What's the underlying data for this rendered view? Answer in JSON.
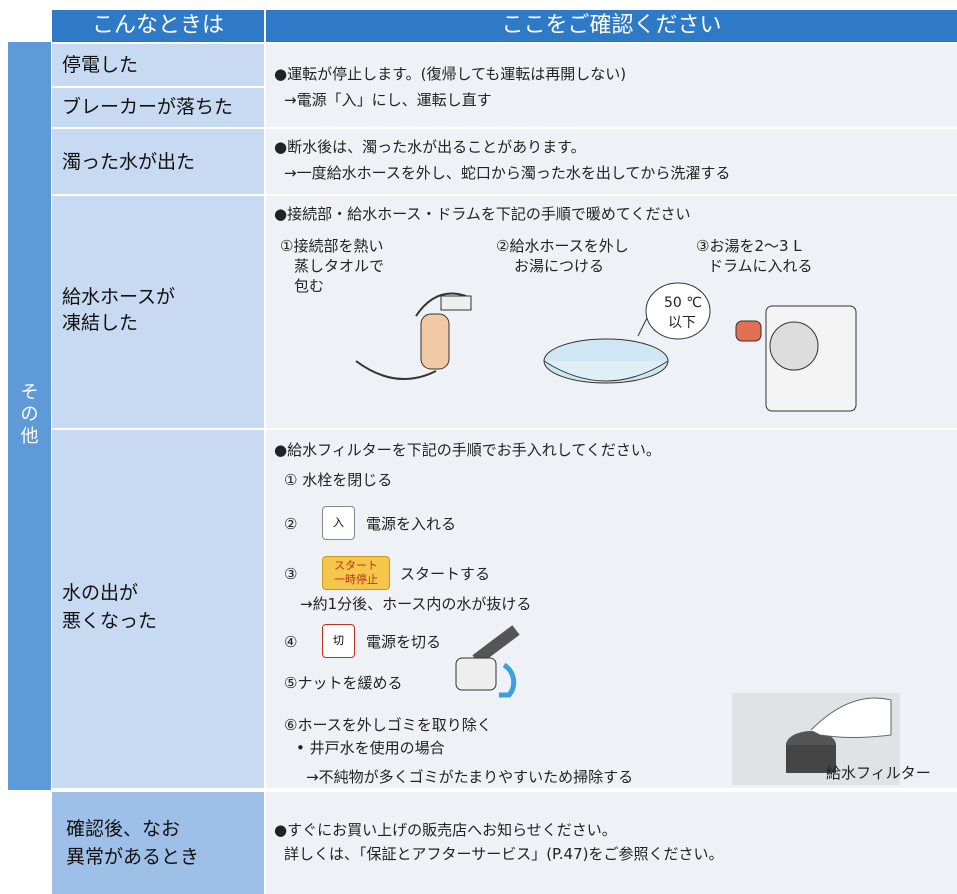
{
  "header": {
    "left": "こんなときは",
    "right": "ここをご確認ください"
  },
  "group_label": [
    "そ",
    "の",
    "他"
  ],
  "rows": [
    {
      "labels": [
        "停電した",
        "ブレーカーが落ちた"
      ],
      "lines": [
        "●運転が停止します。(復帰しても運転は再開しない)",
        "→電源「入」にし、運転し直す"
      ]
    },
    {
      "labels": [
        "濁った水が出た"
      ],
      "lines": [
        "●断水後は、濁った水が出ることがあります。",
        "→一度給水ホースを外し、蛇口から濁った水を出してから洗濯する"
      ]
    },
    {
      "labels": [
        "給水ホースが",
        "凍結した"
      ],
      "lines": [
        "●接続部・給水ホース・ドラムを下記の手順で暖めてください"
      ],
      "steps": [
        [
          "①接続部を熱い",
          "蒸しタオルで",
          "包む"
        ],
        [
          "②給水ホースを外し",
          "お湯につける"
        ],
        [
          "③お湯を2〜3 L",
          "ドラムに入れる"
        ]
      ],
      "bubble": [
        "50 ℃",
        "以下"
      ]
    },
    {
      "labels": [
        "水の出が",
        "悪くなった"
      ],
      "lines": [
        "●給水フィルターを下記の手順でお手入れしてください。"
      ],
      "steps": [
        {
          "text": "① 水栓を閉じる"
        },
        {
          "num": "②",
          "button": [
            "入"
          ],
          "text": "電源を入れる"
        },
        {
          "num": "③",
          "button": [
            "スタート",
            "一時停止"
          ],
          "text": "スタートする",
          "note": "→約1分後、ホース内の水が抜ける"
        },
        {
          "num": "④",
          "button": [
            "切"
          ],
          "text": "電源を切る"
        },
        {
          "text": "⑤ナットを緩める"
        },
        {
          "text": "⑥ホースを外しゴミを取り除く",
          "bullet": "• 井戸水を使用の場合",
          "note": "→不純物が多くゴミがたまりやすいため掃除する"
        }
      ],
      "caption": "給水フィルター"
    },
    {
      "labels": [
        "確認後、なお",
        "異常があるとき"
      ],
      "lines": [
        "●すぐにお買い上げの販売店へお知らせください。",
        "詳しくは、「保証とアフターサービス」(P.47)をご参照ください。"
      ]
    }
  ]
}
